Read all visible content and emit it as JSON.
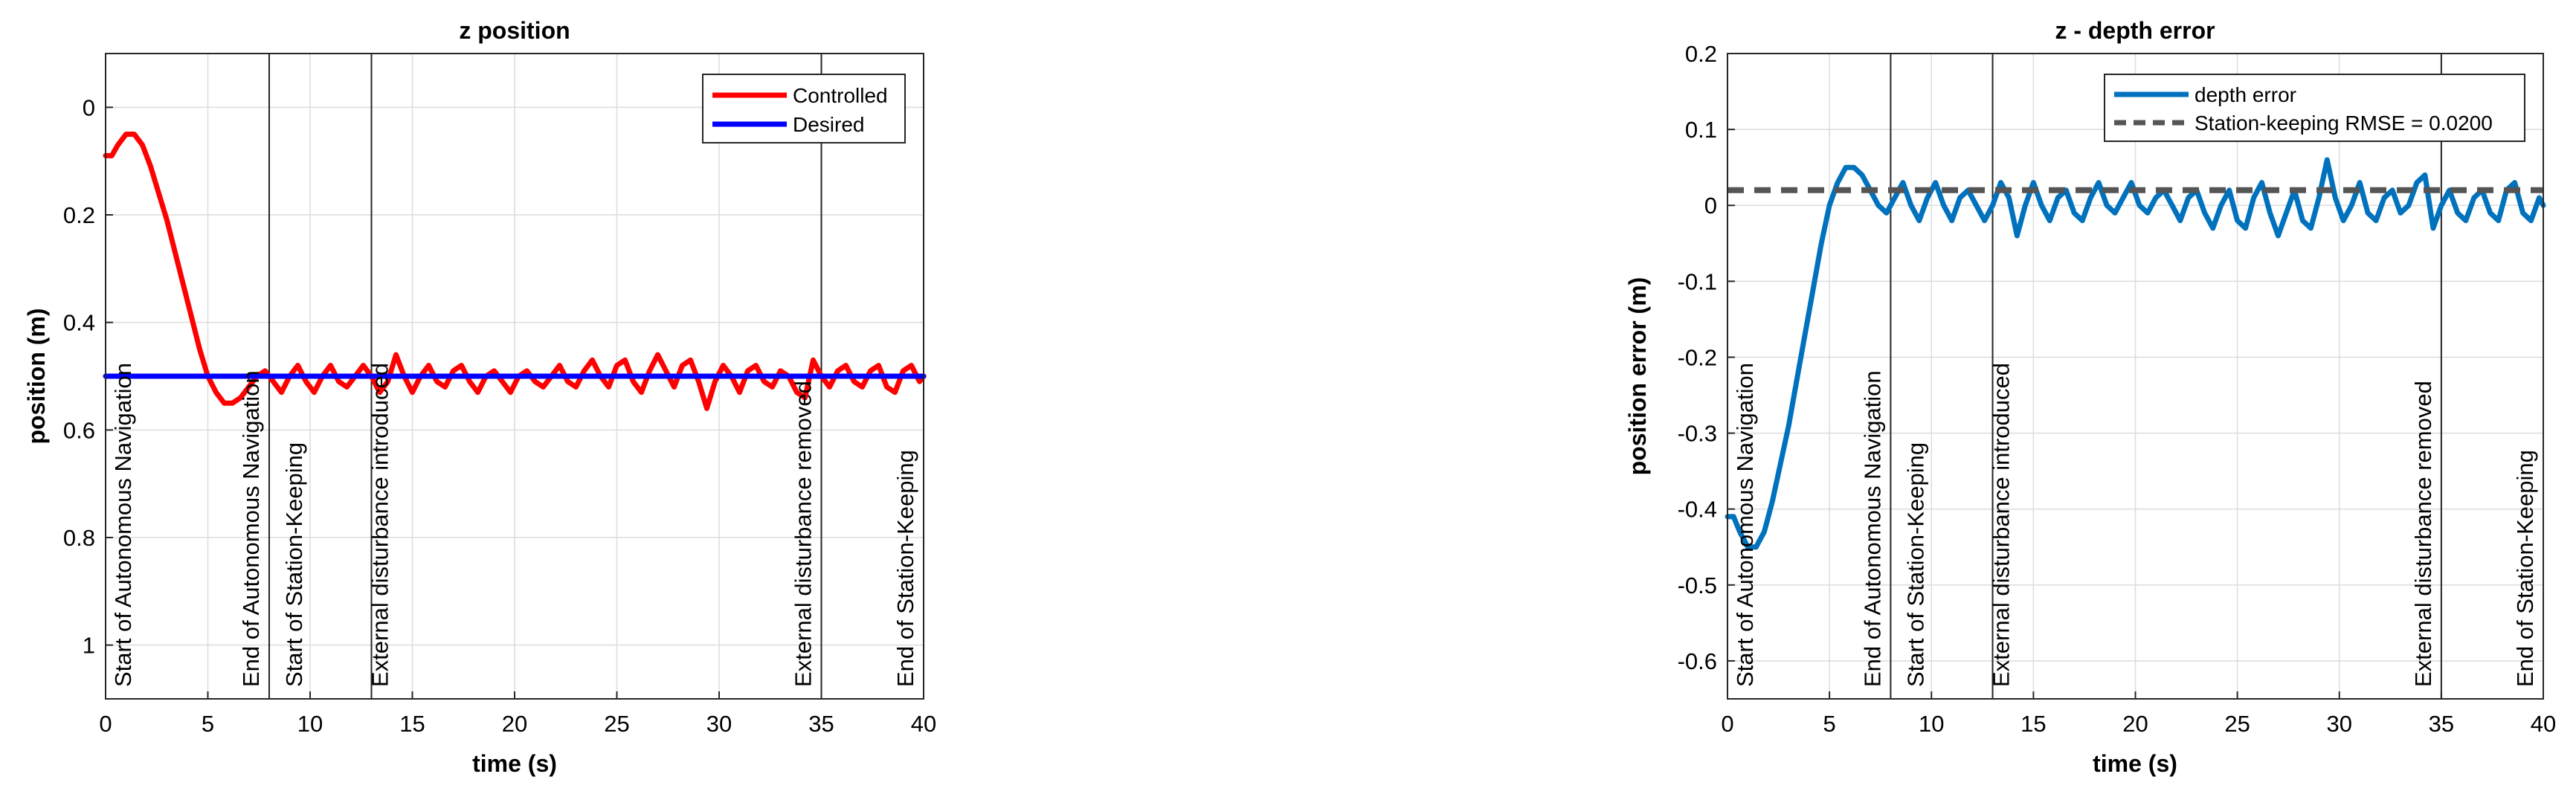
{
  "chart_data": [
    {
      "type": "line",
      "title": "z position",
      "xlabel": "time (s)",
      "ylabel": "position (m)",
      "xlim": [
        0,
        40
      ],
      "ylim": [
        -0.1,
        1.1
      ],
      "y_reversed": true,
      "grid": true,
      "legend_position": "top-right",
      "x_ticks": [
        "0",
        "5",
        "10",
        "15",
        "20",
        "25",
        "30",
        "35",
        "40"
      ],
      "y_ticks": [
        "0",
        "0.2",
        "0.4",
        "0.6",
        "0.8",
        "1"
      ],
      "series": [
        {
          "name": "Controlled",
          "color": "#ff0000",
          "x": [
            0,
            0.3,
            0.6,
            1.0,
            1.4,
            1.8,
            2.2,
            2.6,
            3.0,
            3.4,
            3.8,
            4.2,
            4.6,
            5.0,
            5.4,
            5.8,
            6.2,
            6.6,
            7.0,
            7.4,
            7.8,
            8.2,
            8.6,
            9.0,
            9.4,
            9.8,
            10.2,
            10.6,
            11.0,
            11.4,
            11.8,
            12.2,
            12.6,
            13.0,
            13.4,
            13.8,
            14.2,
            14.6,
            15.0,
            15.4,
            15.8,
            16.2,
            16.6,
            17.0,
            17.4,
            17.8,
            18.2,
            18.6,
            19.0,
            19.4,
            19.8,
            20.2,
            20.6,
            21.0,
            21.4,
            21.8,
            22.2,
            22.6,
            23.0,
            23.4,
            23.8,
            24.2,
            24.6,
            25.0,
            25.4,
            25.8,
            26.2,
            26.6,
            27.0,
            27.4,
            27.8,
            28.2,
            28.6,
            29.0,
            29.4,
            29.8,
            30.2,
            30.6,
            31.0,
            31.4,
            31.8,
            32.2,
            32.6,
            33.0,
            33.4,
            33.8,
            34.2,
            34.6,
            35.0,
            35.4,
            35.8,
            36.2,
            36.6,
            37.0,
            37.4,
            37.8,
            38.2,
            38.6,
            39.0,
            39.4,
            39.8,
            40.0
          ],
          "y": [
            0.09,
            0.09,
            0.07,
            0.05,
            0.05,
            0.07,
            0.11,
            0.16,
            0.21,
            0.27,
            0.33,
            0.39,
            0.45,
            0.5,
            0.53,
            0.55,
            0.55,
            0.54,
            0.52,
            0.5,
            0.49,
            0.51,
            0.53,
            0.5,
            0.48,
            0.51,
            0.53,
            0.5,
            0.48,
            0.51,
            0.52,
            0.5,
            0.48,
            0.5,
            0.53,
            0.51,
            0.46,
            0.5,
            0.53,
            0.5,
            0.48,
            0.51,
            0.52,
            0.49,
            0.48,
            0.51,
            0.53,
            0.5,
            0.49,
            0.51,
            0.53,
            0.5,
            0.49,
            0.51,
            0.52,
            0.5,
            0.48,
            0.51,
            0.52,
            0.49,
            0.47,
            0.5,
            0.52,
            0.48,
            0.47,
            0.51,
            0.53,
            0.49,
            0.46,
            0.49,
            0.52,
            0.48,
            0.47,
            0.51,
            0.56,
            0.51,
            0.48,
            0.5,
            0.53,
            0.49,
            0.48,
            0.51,
            0.52,
            0.49,
            0.5,
            0.53,
            0.54,
            0.47,
            0.5,
            0.52,
            0.49,
            0.48,
            0.51,
            0.52,
            0.49,
            0.48,
            0.52,
            0.53,
            0.49,
            0.48,
            0.51,
            0.5
          ]
        },
        {
          "name": "Desired",
          "color": "#0000ff",
          "x": [
            0,
            40
          ],
          "y": [
            0.5,
            0.5
          ]
        }
      ],
      "vlines": [
        {
          "x": 0,
          "label": "Start of Autonomous Navigation"
        },
        {
          "x": 8,
          "label": "End of Autonomous Navigation"
        },
        {
          "x": 8,
          "label": "Start of Station-Keeping"
        },
        {
          "x": 13,
          "label": "External disturbance introduced"
        },
        {
          "x": 35,
          "label": "External disturbance removed"
        },
        {
          "x": 40,
          "label": "End of Station-Keeping"
        }
      ]
    },
    {
      "type": "line",
      "title": "z - depth error",
      "xlabel": "time (s)",
      "ylabel": "position error (m)",
      "xlim": [
        0,
        40
      ],
      "ylim": [
        -0.65,
        0.2
      ],
      "grid": true,
      "legend_position": "top-right",
      "x_ticks": [
        "0",
        "5",
        "10",
        "15",
        "20",
        "25",
        "30",
        "35",
        "40"
      ],
      "y_ticks": [
        "0.2",
        "0.1",
        "0",
        "-0.1",
        "-0.2",
        "-0.3",
        "-0.4",
        "-0.5",
        "-0.6"
      ],
      "series": [
        {
          "name": "depth error",
          "color": "#0072bd",
          "x": [
            0,
            0.3,
            0.6,
            1.0,
            1.4,
            1.8,
            2.2,
            2.6,
            3.0,
            3.4,
            3.8,
            4.2,
            4.6,
            5.0,
            5.4,
            5.8,
            6.2,
            6.6,
            7.0,
            7.4,
            7.8,
            8.2,
            8.6,
            9.0,
            9.4,
            9.8,
            10.2,
            10.6,
            11.0,
            11.4,
            11.8,
            12.2,
            12.6,
            13.0,
            13.4,
            13.8,
            14.2,
            14.6,
            15.0,
            15.4,
            15.8,
            16.2,
            16.6,
            17.0,
            17.4,
            17.8,
            18.2,
            18.6,
            19.0,
            19.4,
            19.8,
            20.2,
            20.6,
            21.0,
            21.4,
            21.8,
            22.2,
            22.6,
            23.0,
            23.4,
            23.8,
            24.2,
            24.6,
            25.0,
            25.4,
            25.8,
            26.2,
            26.6,
            27.0,
            27.4,
            27.8,
            28.2,
            28.6,
            29.0,
            29.4,
            29.8,
            30.2,
            30.6,
            31.0,
            31.4,
            31.8,
            32.2,
            32.6,
            33.0,
            33.4,
            33.8,
            34.2,
            34.6,
            35.0,
            35.4,
            35.8,
            36.2,
            36.6,
            37.0,
            37.4,
            37.8,
            38.2,
            38.6,
            39.0,
            39.4,
            39.8,
            40.0
          ],
          "y": [
            -0.41,
            -0.41,
            -0.43,
            -0.45,
            -0.45,
            -0.43,
            -0.39,
            -0.34,
            -0.29,
            -0.23,
            -0.17,
            -0.11,
            -0.05,
            0.0,
            0.03,
            0.05,
            0.05,
            0.04,
            0.02,
            0.0,
            -0.01,
            0.01,
            0.03,
            0.0,
            -0.02,
            0.01,
            0.03,
            0.0,
            -0.02,
            0.01,
            0.02,
            0.0,
            -0.02,
            0.0,
            0.03,
            0.01,
            -0.04,
            0.0,
            0.03,
            0.0,
            -0.02,
            0.01,
            0.02,
            -0.01,
            -0.02,
            0.01,
            0.03,
            0.0,
            -0.01,
            0.01,
            0.03,
            0.0,
            -0.01,
            0.01,
            0.02,
            0.0,
            -0.02,
            0.01,
            0.02,
            -0.01,
            -0.03,
            0.0,
            0.02,
            -0.02,
            -0.03,
            0.01,
            0.03,
            -0.01,
            -0.04,
            -0.01,
            0.02,
            -0.02,
            -0.03,
            0.01,
            0.06,
            0.01,
            -0.02,
            0.0,
            0.03,
            -0.01,
            -0.02,
            0.01,
            0.02,
            -0.01,
            0.0,
            0.03,
            0.04,
            -0.03,
            0.0,
            0.02,
            -0.01,
            -0.02,
            0.01,
            0.02,
            -0.01,
            -0.02,
            0.02,
            0.03,
            -0.01,
            -0.02,
            0.01,
            0.0
          ]
        },
        {
          "name": "Station-keeping RMSE = 0.0200",
          "color": "#555555",
          "dashed": true,
          "x": [
            0,
            40
          ],
          "y": [
            0.02,
            0.02
          ]
        }
      ],
      "vlines": [
        {
          "x": 0,
          "label": "Start of Autonomous Navigation"
        },
        {
          "x": 8,
          "label": "End of Autonomous Navigation"
        },
        {
          "x": 8,
          "label": "Start of Station-Keeping"
        },
        {
          "x": 13,
          "label": "External disturbance introduced"
        },
        {
          "x": 35,
          "label": "External disturbance removed"
        },
        {
          "x": 40,
          "label": "End of Station-Keeping"
        }
      ]
    }
  ]
}
